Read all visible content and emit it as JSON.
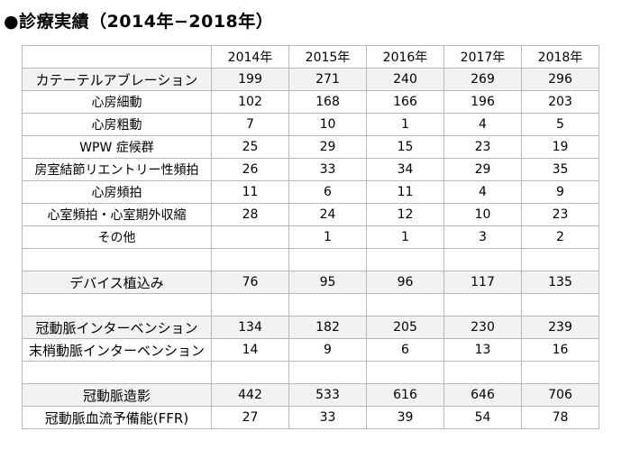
{
  "title": "●診療実績（2014年−2018年）",
  "table": {
    "header": [
      "",
      "2014年",
      "2015年",
      "2016年",
      "2017年",
      "2018年"
    ],
    "rows": [
      {
        "label": "カテーテルアブレーション",
        "values": [
          "199",
          "271",
          "240",
          "269",
          "296"
        ],
        "shaded": true,
        "big": true
      },
      {
        "label": "心房細動",
        "values": [
          "102",
          "168",
          "166",
          "196",
          "203"
        ],
        "shaded": false
      },
      {
        "label": "心房粗動",
        "values": [
          "7",
          "10",
          "1",
          "4",
          "5"
        ],
        "shaded": false
      },
      {
        "label": "WPW 症候群",
        "values": [
          "25",
          "29",
          "15",
          "23",
          "19"
        ],
        "shaded": false
      },
      {
        "label": "房室結節リエントリー性頻拍",
        "values": [
          "26",
          "33",
          "34",
          "29",
          "35"
        ],
        "shaded": false
      },
      {
        "label": "心房頻拍",
        "values": [
          "11",
          "6",
          "11",
          "4",
          "9"
        ],
        "shaded": false
      },
      {
        "label": "心室頻拍・心室期外収縮",
        "values": [
          "28",
          "24",
          "12",
          "10",
          "23"
        ],
        "shaded": false
      },
      {
        "label": "その他",
        "values": [
          "",
          "1",
          "1",
          "3",
          "2"
        ],
        "shaded": false
      },
      {
        "label": "",
        "values": [
          "",
          "",
          "",
          "",
          ""
        ],
        "shaded": false
      },
      {
        "label": "デバイス植込み",
        "values": [
          "76",
          "95",
          "96",
          "117",
          "135"
        ],
        "shaded": true,
        "big": true
      },
      {
        "label": "",
        "values": [
          "",
          "",
          "",
          "",
          ""
        ],
        "shaded": false
      },
      {
        "label": "冠動脈インターベンション",
        "values": [
          "134",
          "182",
          "205",
          "230",
          "239"
        ],
        "shaded": true,
        "big": true
      },
      {
        "label": "末梢動脈インターベンション",
        "values": [
          "14",
          "9",
          "6",
          "13",
          "16"
        ],
        "shaded": false,
        "big": true
      },
      {
        "label": "",
        "values": [
          "",
          "",
          "",
          "",
          ""
        ],
        "shaded": false
      },
      {
        "label": "冠動脈造影",
        "values": [
          "442",
          "533",
          "616",
          "646",
          "706"
        ],
        "shaded": true,
        "big": true
      },
      {
        "label": "冠動脈血流予備能(FFR)",
        "values": [
          "27",
          "33",
          "39",
          "54",
          "78"
        ],
        "shaded": false,
        "big": true
      }
    ]
  }
}
